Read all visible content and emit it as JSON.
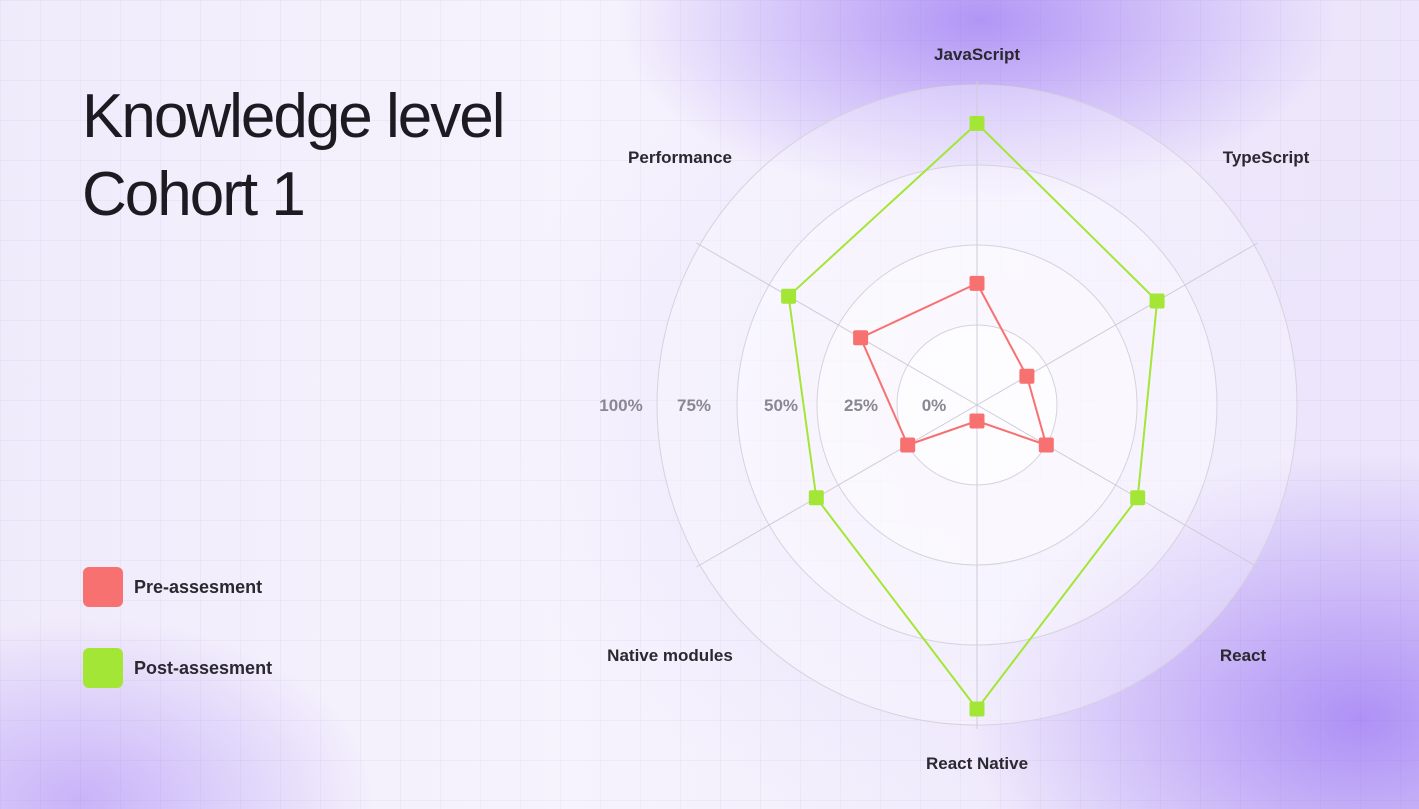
{
  "title": {
    "line1": "Knowledge level",
    "line2": "Cohort 1"
  },
  "legend": [
    {
      "label": "Pre-assesment",
      "color": "#f87171"
    },
    {
      "label": "Post-assesment",
      "color": "#a3e635"
    }
  ],
  "chart_data": {
    "type": "radar",
    "axes": [
      "JavaScript",
      "TypeScript",
      "React",
      "React Native",
      "Native modules",
      "Performance"
    ],
    "scale_labels": [
      "100%",
      "75%",
      "50%",
      "25%",
      "0%"
    ],
    "range": [
      0,
      100
    ],
    "series": [
      {
        "name": "Pre-assesment",
        "color": "#f87171",
        "values": [
          38,
          18,
          25,
          5,
          25,
          42
        ]
      },
      {
        "name": "Post-assesment",
        "color": "#a3e635",
        "values": [
          88,
          65,
          58,
          95,
          58,
          68
        ]
      }
    ]
  }
}
